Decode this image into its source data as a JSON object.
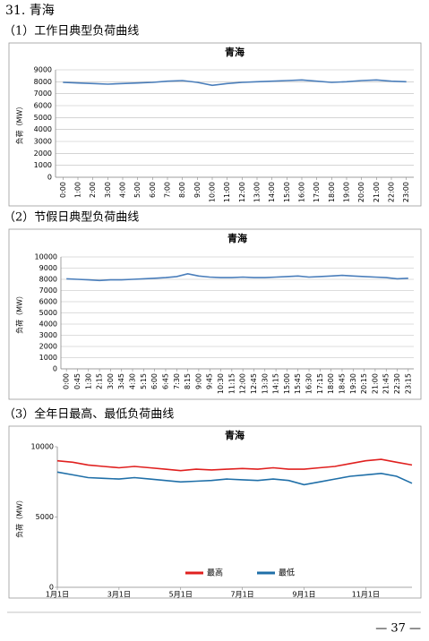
{
  "heading": "31. 青海",
  "sections": [
    "（1）工作日典型负荷曲线",
    "（2）节假日典型负荷曲线",
    "（3）全年日最高、最低负荷曲线"
  ],
  "page_number": "— 37 —",
  "chart_data": [
    {
      "type": "line",
      "title": "青海",
      "y_label": "负荷（MW）",
      "color": "#4a7ebb",
      "categories": [
        "0:00",
        "1:00",
        "2:00",
        "3:00",
        "4:00",
        "5:00",
        "6:00",
        "7:00",
        "8:00",
        "9:00",
        "10:00",
        "11:00",
        "12:00",
        "13:00",
        "14:00",
        "15:00",
        "16:00",
        "17:00",
        "18:00",
        "19:00",
        "20:00",
        "21:00",
        "22:00",
        "23:00"
      ],
      "values": [
        7950,
        7900,
        7850,
        7800,
        7850,
        7900,
        7950,
        8050,
        8100,
        7950,
        7700,
        7850,
        7950,
        8000,
        8050,
        8100,
        8150,
        8050,
        7950,
        8000,
        8100,
        8150,
        8050,
        8000
      ],
      "ylim": [
        0,
        9000
      ],
      "yticks": [
        0,
        1000,
        2000,
        3000,
        4000,
        5000,
        6000,
        7000,
        8000,
        9000
      ],
      "grid": true
    },
    {
      "type": "line",
      "title": "青海",
      "y_label": "负荷（MW）",
      "color": "#4a7ebb",
      "categories": [
        "0:00",
        "0:45",
        "1:30",
        "2:15",
        "3:00",
        "3:45",
        "4:30",
        "5:15",
        "6:00",
        "6:45",
        "7:30",
        "8:15",
        "9:00",
        "9:45",
        "10:30",
        "11:15",
        "12:00",
        "12:45",
        "13:30",
        "14:15",
        "15:00",
        "15:45",
        "16:30",
        "17:15",
        "18:00",
        "18:45",
        "19:30",
        "20:15",
        "21:00",
        "21:45",
        "22:30",
        "23:15"
      ],
      "values": [
        8050,
        8000,
        7950,
        7900,
        7950,
        7950,
        8000,
        8050,
        8100,
        8150,
        8250,
        8500,
        8300,
        8200,
        8150,
        8150,
        8200,
        8150,
        8150,
        8200,
        8250,
        8300,
        8200,
        8250,
        8300,
        8350,
        8300,
        8250,
        8200,
        8150,
        8050,
        8100
      ],
      "ylim": [
        0,
        10000
      ],
      "yticks": [
        0,
        1000,
        2000,
        3000,
        4000,
        5000,
        6000,
        7000,
        8000,
        9000,
        10000
      ],
      "grid": true
    },
    {
      "type": "line",
      "title": "青海",
      "y_label": "负荷（MW）",
      "categories": [
        "1月1日",
        null,
        null,
        null,
        "3月1日",
        null,
        null,
        null,
        "5月1日",
        null,
        null,
        null,
        "7月1日",
        null,
        null,
        null,
        "9月1日",
        null,
        null,
        null,
        "11月1日",
        null,
        null,
        null
      ],
      "series": [
        {
          "name": "最高",
          "color": "#e0201f",
          "values": [
            9000,
            8900,
            8700,
            8600,
            8500,
            8600,
            8500,
            8400,
            8300,
            8400,
            8350,
            8400,
            8450,
            8400,
            8500,
            8400,
            8400,
            8500,
            8600,
            8800,
            9000,
            9100,
            8900,
            8700
          ]
        },
        {
          "name": "最低",
          "color": "#1f6fa8",
          "values": [
            8200,
            8000,
            7800,
            7750,
            7700,
            7800,
            7700,
            7600,
            7500,
            7550,
            7600,
            7700,
            7650,
            7600,
            7700,
            7600,
            7300,
            7500,
            7700,
            7900,
            8000,
            8100,
            7900,
            7400
          ]
        }
      ],
      "ylim": [
        0,
        10000
      ],
      "yticks": [
        0,
        5000,
        10000
      ],
      "grid": false,
      "legend": "bottom"
    }
  ]
}
